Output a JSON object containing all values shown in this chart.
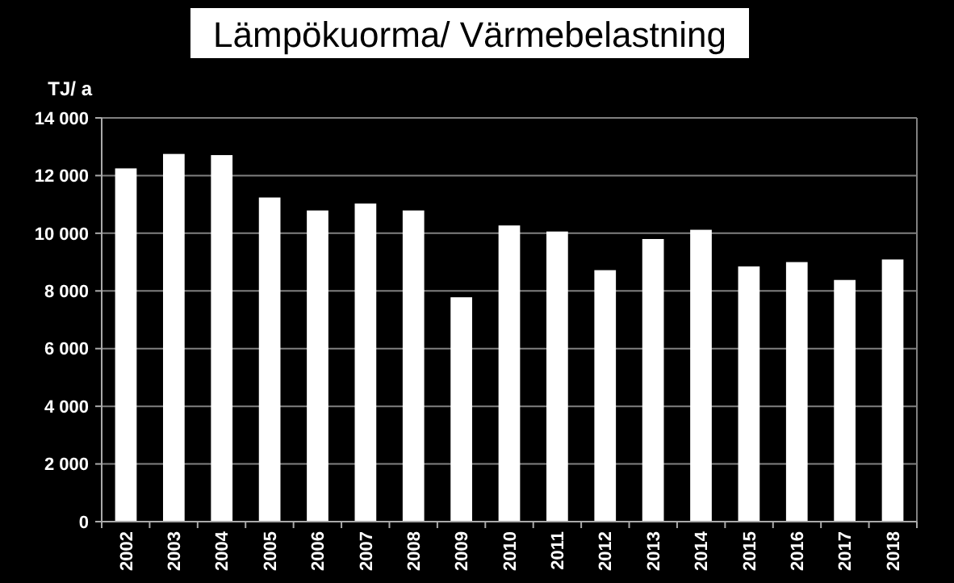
{
  "chart_data": {
    "type": "bar",
    "title": "Lämpökuorma/ Värmebelastning",
    "ylabel": "TJ/ a",
    "categories": [
      "2002",
      "2003",
      "2004",
      "2005",
      "2006",
      "2007",
      "2008",
      "2009",
      "2010",
      "2011",
      "2012",
      "2013",
      "2014",
      "2015",
      "2016",
      "2017",
      "2018"
    ],
    "values": [
      12250,
      12750,
      12710,
      11240,
      10790,
      11030,
      10790,
      7780,
      10270,
      10060,
      8720,
      9800,
      10120,
      8850,
      9000,
      8380,
      9090
    ],
    "color": "#ffffff",
    "ylim": [
      0,
      14000
    ],
    "yticks": [
      {
        "value": 0,
        "label": "0"
      },
      {
        "value": 2000,
        "label": "2 000"
      },
      {
        "value": 4000,
        "label": "4 000"
      },
      {
        "value": 6000,
        "label": "6 000"
      },
      {
        "value": 8000,
        "label": "8 000"
      },
      {
        "value": 10000,
        "label": "10 000"
      },
      {
        "value": 12000,
        "label": "12 000"
      },
      {
        "value": 14000,
        "label": "14 000"
      }
    ],
    "grid": "y"
  }
}
